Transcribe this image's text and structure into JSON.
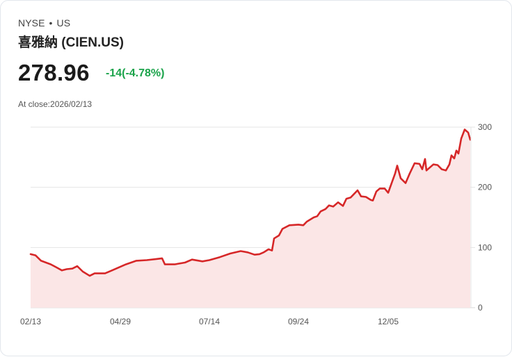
{
  "header": {
    "exchange": "NYSE",
    "separator": "•",
    "region": "US",
    "title": "喜雅納 (CIEN.US)",
    "price": "278.96",
    "change": "-14(-4.78%)",
    "close_label": "At close:2026/02/13"
  },
  "colors": {
    "line": "#d62728",
    "fill": "#fbe6e6",
    "change": "#1aa34a",
    "grid": "#e4e4e4"
  },
  "chart_data": {
    "type": "area",
    "title": "喜雅納 (CIEN.US)",
    "xlabel": "",
    "ylabel": "",
    "ylim": [
      0,
      300
    ],
    "yticks": [
      "0",
      "100",
      "200",
      "300"
    ],
    "xticks": [
      "02/13",
      "04/29",
      "07/14",
      "09/24",
      "12/05"
    ],
    "grid": true,
    "legend": "none",
    "series": [
      {
        "name": "CIEN.US",
        "points": [
          [
            43,
            89
          ],
          [
            50,
            87
          ],
          [
            58,
            78
          ],
          [
            65,
            75
          ],
          [
            72,
            72
          ],
          [
            80,
            67
          ],
          [
            88,
            62
          ],
          [
            95,
            64
          ],
          [
            103,
            65
          ],
          [
            110,
            69
          ],
          [
            118,
            60
          ],
          [
            128,
            53
          ],
          [
            135,
            57
          ],
          [
            150,
            57
          ],
          [
            160,
            62
          ],
          [
            170,
            67
          ],
          [
            180,
            72
          ],
          [
            195,
            78
          ],
          [
            210,
            79
          ],
          [
            225,
            81
          ],
          [
            232,
            82
          ],
          [
            236,
            72
          ],
          [
            250,
            72
          ],
          [
            265,
            75
          ],
          [
            275,
            80
          ],
          [
            290,
            77
          ],
          [
            300,
            79
          ],
          [
            315,
            84
          ],
          [
            330,
            90
          ],
          [
            345,
            94
          ],
          [
            355,
            92
          ],
          [
            365,
            88
          ],
          [
            372,
            89
          ],
          [
            378,
            92
          ],
          [
            385,
            97
          ],
          [
            390,
            95
          ],
          [
            393,
            115
          ],
          [
            400,
            120
          ],
          [
            405,
            131
          ],
          [
            415,
            137
          ],
          [
            428,
            138
          ],
          [
            435,
            137
          ],
          [
            440,
            143
          ],
          [
            450,
            150
          ],
          [
            455,
            152
          ],
          [
            460,
            160
          ],
          [
            467,
            164
          ],
          [
            472,
            170
          ],
          [
            478,
            168
          ],
          [
            485,
            175
          ],
          [
            492,
            169
          ],
          [
            497,
            181
          ],
          [
            503,
            183
          ],
          [
            508,
            189
          ],
          [
            513,
            195
          ],
          [
            518,
            185
          ],
          [
            525,
            184
          ],
          [
            532,
            179
          ],
          [
            535,
            178
          ],
          [
            540,
            193
          ],
          [
            545,
            198
          ],
          [
            552,
            198
          ],
          [
            557,
            191
          ],
          [
            562,
            207
          ],
          [
            567,
            223
          ],
          [
            570,
            236
          ],
          [
            575,
            215
          ],
          [
            582,
            207
          ],
          [
            588,
            223
          ],
          [
            595,
            240
          ],
          [
            602,
            239
          ],
          [
            606,
            230
          ],
          [
            610,
            247
          ],
          [
            612,
            228
          ],
          [
            618,
            234
          ],
          [
            622,
            238
          ],
          [
            628,
            237
          ],
          [
            634,
            230
          ],
          [
            640,
            228
          ],
          [
            645,
            238
          ],
          [
            648,
            253
          ],
          [
            652,
            248
          ],
          [
            655,
            261
          ],
          [
            658,
            256
          ],
          [
            662,
            281
          ],
          [
            667,
            296
          ],
          [
            672,
            291
          ],
          [
            675,
            279
          ]
        ]
      }
    ],
    "last_value": 278.96
  }
}
